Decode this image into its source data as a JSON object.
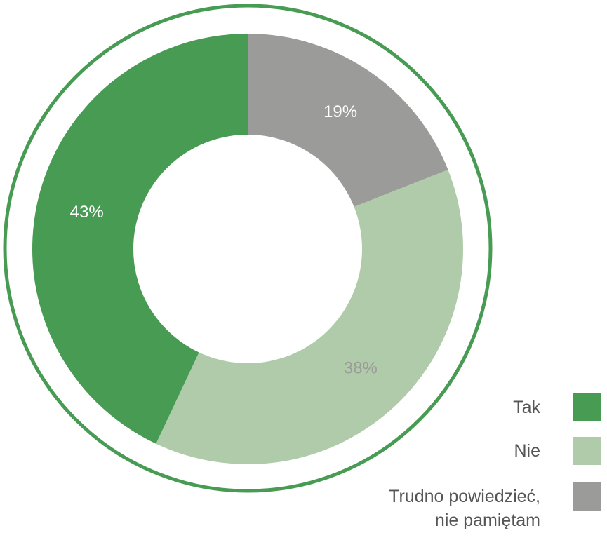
{
  "chart_data": {
    "type": "donut",
    "categories": [
      "Tak",
      "Nie",
      "Trudno powiedzieć,\nnie pamiętam"
    ],
    "values": [
      43,
      38,
      19
    ],
    "value_labels": [
      "43%",
      "38%",
      "19%"
    ],
    "colors": [
      "#489b53",
      "#b0cba9",
      "#9b9b9a"
    ],
    "label_colors": [
      "#ffffff",
      "#9b9b9a",
      "#ffffff"
    ],
    "legend": "bottom-right"
  }
}
